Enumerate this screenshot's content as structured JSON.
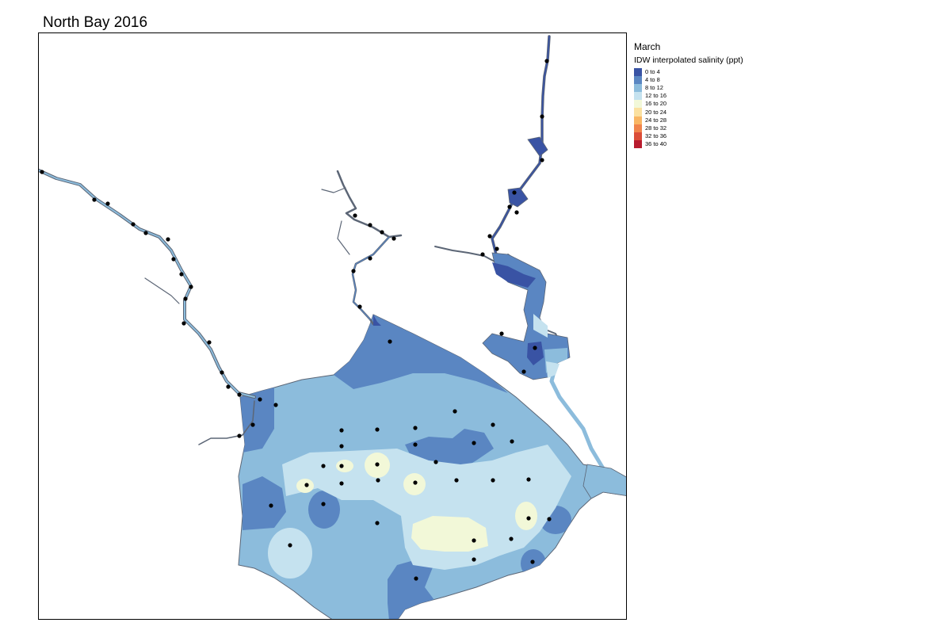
{
  "title": "North Bay 2016",
  "legend": {
    "month": "March",
    "subtitle": "IDW interpolated salinity (ppt)",
    "items": [
      {
        "label": "0 to 4",
        "color": "#3953a4"
      },
      {
        "label": "4 to 8",
        "color": "#5a86c2"
      },
      {
        "label": "8 to 12",
        "color": "#8cbcdc"
      },
      {
        "label": "12 to 16",
        "color": "#c5e2ef"
      },
      {
        "label": "16 to 20",
        "color": "#f2f8d8"
      },
      {
        "label": "20 to 24",
        "color": "#fbe1a0"
      },
      {
        "label": "24 to 28",
        "color": "#f9b664"
      },
      {
        "label": "28 to 32",
        "color": "#f0844c"
      },
      {
        "label": "32 to 36",
        "color": "#db4d38"
      },
      {
        "label": "36 to 40",
        "color": "#b81b2e"
      }
    ]
  },
  "stations": [
    [
      52,
      216
    ],
    [
      118,
      251
    ],
    [
      135,
      256
    ],
    [
      167,
      282
    ],
    [
      183,
      293
    ],
    [
      211,
      301
    ],
    [
      218,
      326
    ],
    [
      228,
      345
    ],
    [
      240,
      361
    ],
    [
      233,
      376
    ],
    [
      231,
      407
    ],
    [
      263,
      431
    ],
    [
      279,
      469
    ],
    [
      287,
      487
    ],
    [
      301,
      497
    ],
    [
      327,
      503
    ],
    [
      347,
      510
    ],
    [
      318,
      535
    ],
    [
      301,
      549
    ],
    [
      447,
      271
    ],
    [
      466,
      283
    ],
    [
      481,
      292
    ],
    [
      496,
      300
    ],
    [
      466,
      325
    ],
    [
      445,
      341
    ],
    [
      453,
      386
    ],
    [
      491,
      430
    ],
    [
      689,
      76
    ],
    [
      683,
      146
    ],
    [
      683,
      201
    ],
    [
      648,
      242
    ],
    [
      642,
      260
    ],
    [
      651,
      267
    ],
    [
      617,
      297
    ],
    [
      608,
      320
    ],
    [
      626,
      313
    ],
    [
      632,
      420
    ],
    [
      674,
      438
    ],
    [
      660,
      468
    ],
    [
      573,
      518
    ],
    [
      621,
      535
    ],
    [
      430,
      542
    ],
    [
      475,
      541
    ],
    [
      523,
      539
    ],
    [
      430,
      562
    ],
    [
      523,
      560
    ],
    [
      597,
      558
    ],
    [
      645,
      556
    ],
    [
      407,
      587
    ],
    [
      430,
      587
    ],
    [
      475,
      585
    ],
    [
      549,
      582
    ],
    [
      386,
      611
    ],
    [
      430,
      609
    ],
    [
      476,
      605
    ],
    [
      523,
      608
    ],
    [
      575,
      605
    ],
    [
      621,
      605
    ],
    [
      666,
      604
    ],
    [
      341,
      637
    ],
    [
      407,
      635
    ],
    [
      475,
      659
    ],
    [
      666,
      653
    ],
    [
      692,
      654
    ],
    [
      365,
      687
    ],
    [
      597,
      681
    ],
    [
      644,
      679
    ],
    [
      597,
      705
    ],
    [
      671,
      708
    ],
    [
      524,
      729
    ]
  ]
}
